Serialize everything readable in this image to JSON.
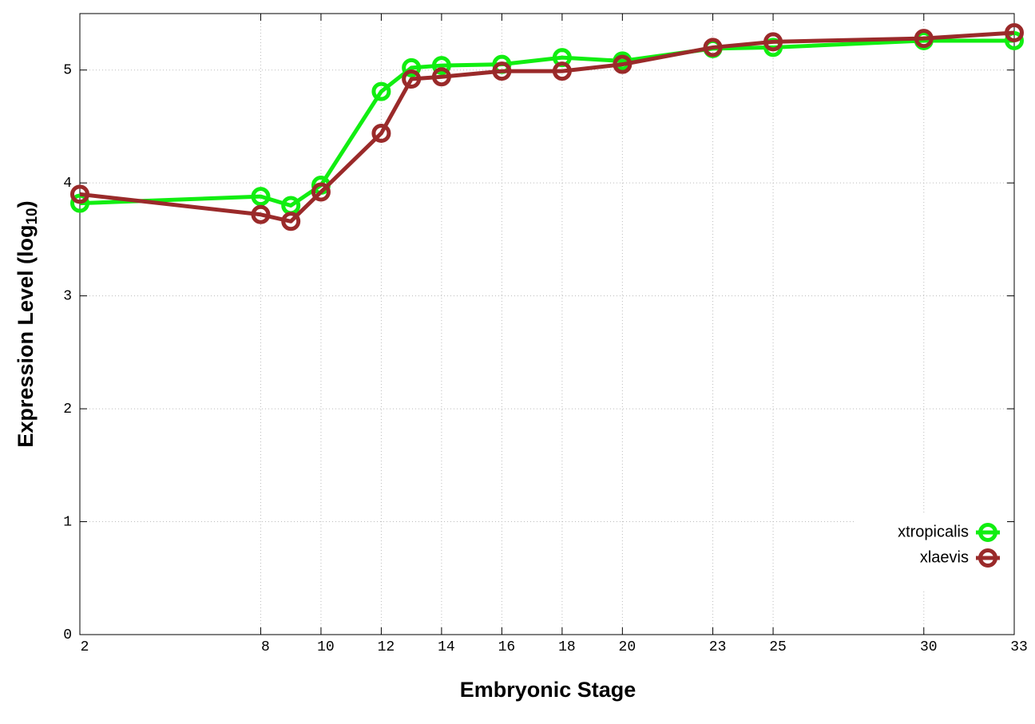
{
  "chart_data": {
    "type": "line",
    "xlabel": "Embryonic Stage",
    "ylabel": [
      "Expression Level (log",
      "10",
      ")"
    ],
    "x": [
      2,
      8,
      9,
      10,
      12,
      13,
      14,
      16,
      18,
      20,
      23,
      25,
      30,
      33
    ],
    "series": [
      {
        "name": "xtropicalis",
        "color": "#11ee11",
        "values": [
          3.82,
          3.88,
          3.8,
          3.98,
          4.81,
          5.02,
          5.04,
          5.05,
          5.11,
          5.08,
          5.19,
          5.2,
          5.26,
          5.26
        ]
      },
      {
        "name": "xlaevis",
        "color": "#9a2a2a",
        "values": [
          3.9,
          3.72,
          3.66,
          3.92,
          4.44,
          4.92,
          4.94,
          4.99,
          4.99,
          5.05,
          5.2,
          5.25,
          5.28,
          5.33
        ]
      }
    ],
    "xlim": [
      2,
      33
    ],
    "xticks": [
      2,
      8,
      10,
      12,
      14,
      16,
      18,
      20,
      23,
      25,
      30,
      33
    ],
    "ylim": [
      0,
      5.5
    ],
    "yticks": [
      0,
      1,
      2,
      3,
      4,
      5
    ],
    "grid": true,
    "legend": "lower right"
  }
}
